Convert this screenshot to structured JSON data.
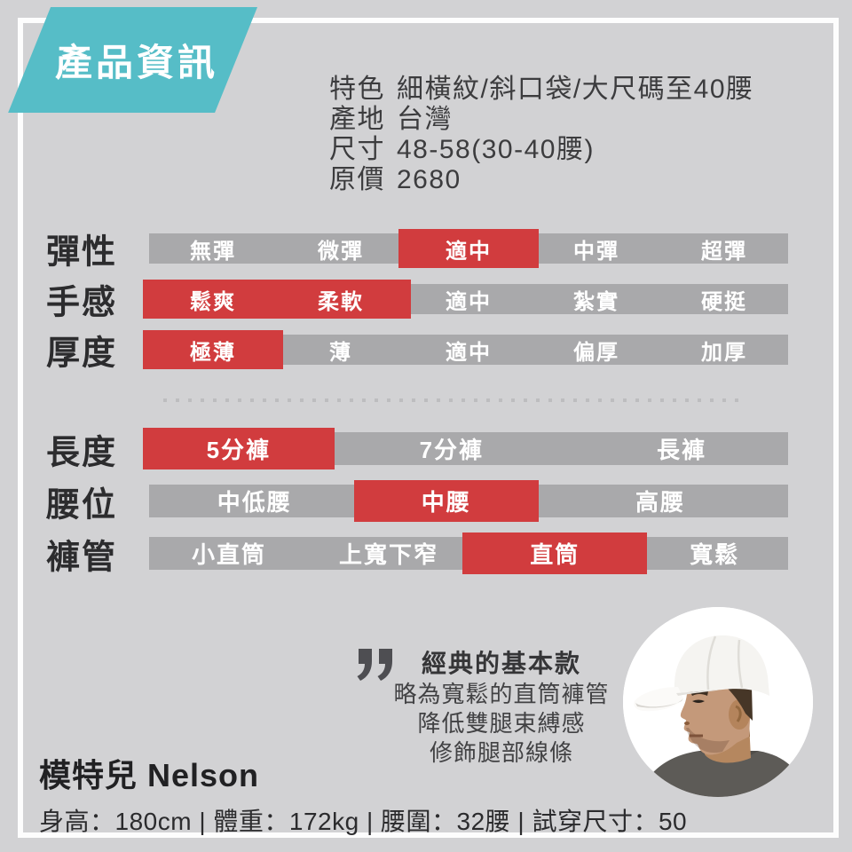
{
  "badge": {
    "label": "產品資訊"
  },
  "product_info": {
    "items": [
      {
        "label": "特色",
        "value": "細橫紋/斜口袋/大尺碼至40腰"
      },
      {
        "label": "產地",
        "value": "台灣"
      },
      {
        "label": "尺寸",
        "value": "48-58(30-40腰)"
      },
      {
        "label": "原價",
        "value": "2680"
      }
    ]
  },
  "spec_rows": {
    "group_top": [
      {
        "label": "彈性",
        "options": [
          {
            "text": "無彈",
            "active": false,
            "w": 1
          },
          {
            "text": "微彈",
            "active": false,
            "w": 1
          },
          {
            "text": "適中",
            "active": true,
            "w": 1
          },
          {
            "text": "中彈",
            "active": false,
            "w": 1
          },
          {
            "text": "超彈",
            "active": false,
            "w": 1
          }
        ]
      },
      {
        "label": "手感",
        "options": [
          {
            "text": "鬆爽",
            "active": true,
            "w": 1
          },
          {
            "text": "柔軟",
            "active": true,
            "w": 1
          },
          {
            "text": "適中",
            "active": false,
            "w": 1
          },
          {
            "text": "紮實",
            "active": false,
            "w": 1
          },
          {
            "text": "硬挺",
            "active": false,
            "w": 1
          }
        ]
      },
      {
        "label": "厚度",
        "options": [
          {
            "text": "極薄",
            "active": true,
            "w": 1
          },
          {
            "text": "薄",
            "active": false,
            "w": 1
          },
          {
            "text": "適中",
            "active": false,
            "w": 1
          },
          {
            "text": "偏厚",
            "active": false,
            "w": 1
          },
          {
            "text": "加厚",
            "active": false,
            "w": 1
          }
        ]
      }
    ],
    "group_bottom": [
      {
        "label": "長度",
        "options": [
          {
            "text": "5分褲",
            "active": true,
            "w": 0.84
          },
          {
            "text": "7分褲",
            "active": false,
            "w": 1.16
          },
          {
            "text": "長褲",
            "active": false,
            "w": 1.0
          }
        ]
      },
      {
        "label": "腰位",
        "options": [
          {
            "text": "中低腰",
            "active": false,
            "w": 0.99
          },
          {
            "text": "中腰",
            "active": true,
            "w": 0.81
          },
          {
            "text": "高腰",
            "active": false,
            "w": 1.2
          }
        ]
      },
      {
        "label": "褲管",
        "options": [
          {
            "text": "小直筒",
            "active": false,
            "w": 1
          },
          {
            "text": "上寬下窄",
            "active": false,
            "w": 1
          },
          {
            "text": "直筒",
            "active": true,
            "w": 1.08
          },
          {
            "text": "寬鬆",
            "active": false,
            "w": 0.92
          }
        ]
      }
    ]
  },
  "quote": {
    "icon": "double-quote-icon",
    "title": "經典的基本款",
    "lines": [
      "略為寬鬆的直筒褲管",
      "降低雙腿束縛感",
      "修飾腿部線條"
    ]
  },
  "model": {
    "label": "模特兒",
    "name": "Nelson",
    "separator": " | ",
    "stats": [
      "身高：180cm",
      "體重：172kg",
      "腰圍：32腰",
      "試穿尺寸：50"
    ]
  },
  "colors": {
    "accent_teal": "#56bdc7",
    "highlight_red": "#d13c3e",
    "bar_gray": "#a9a9ab",
    "background": "#d2d2d4"
  }
}
